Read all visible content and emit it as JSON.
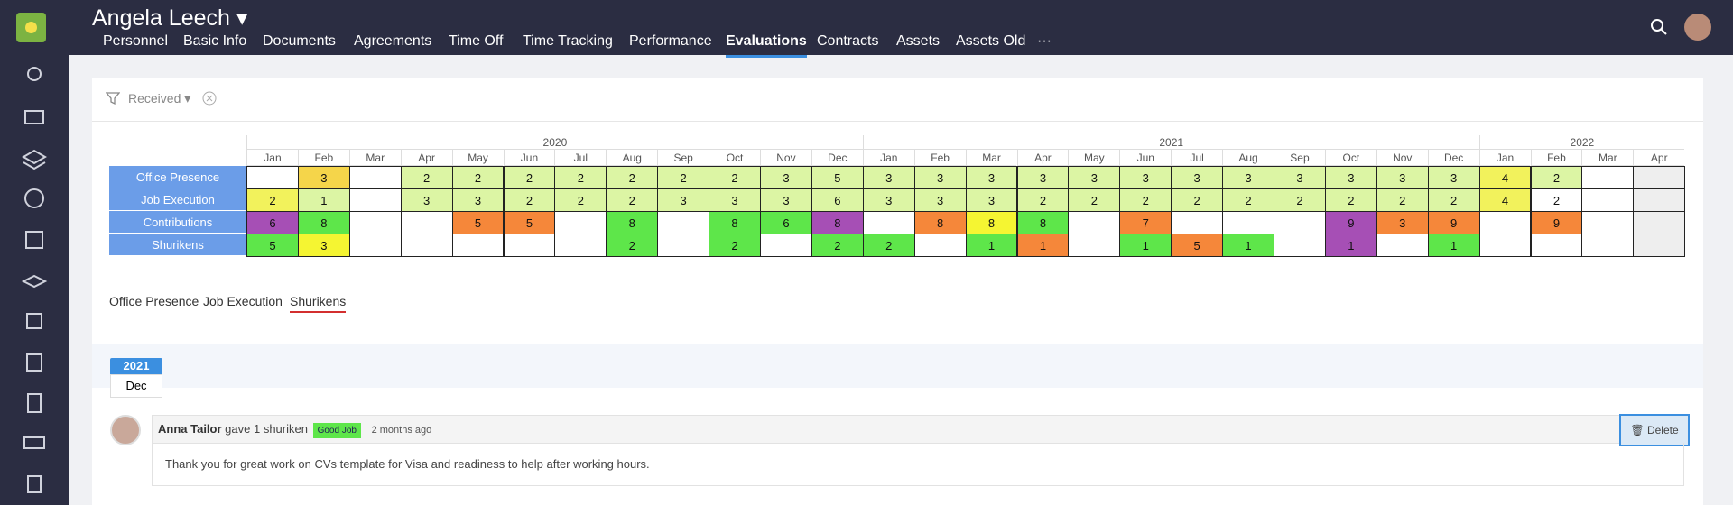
{
  "header": {
    "user_name": "Angela Leech",
    "tabs": [
      "Personnel",
      "Basic Info",
      "Documents",
      "Agreements",
      "Time Off",
      "Time Tracking",
      "Performance",
      "Evaluations",
      "Contracts",
      "Assets",
      "Assets Old",
      "···"
    ]
  },
  "filter": {
    "label": "Received"
  },
  "grid": {
    "years": [
      "2020",
      "2021",
      "2022"
    ],
    "months": [
      "Jan",
      "Feb",
      "Mar",
      "Apr",
      "May",
      "Jun",
      "Jul",
      "Aug",
      "Sep",
      "Oct",
      "Nov",
      "Dec",
      "Jan",
      "Feb",
      "Mar",
      "Apr",
      "May",
      "Jun",
      "Jul",
      "Aug",
      "Sep",
      "Oct",
      "Nov",
      "Dec",
      "Jan",
      "Feb",
      "Mar",
      "Apr"
    ],
    "rows": [
      {
        "label": "Office Presence",
        "values": [
          null,
          3,
          null,
          2,
          2,
          2,
          2,
          2,
          2,
          2,
          3,
          5,
          3,
          3,
          3,
          3,
          3,
          3,
          3,
          3,
          3,
          3,
          3,
          3,
          4,
          2,
          null,
          null
        ],
        "colors": [
          null,
          "#f5d54a",
          null,
          "#dcf5a4",
          "#dcf5a4",
          "#dcf5a4",
          "#dcf5a4",
          "#dcf5a4",
          "#dcf5a4",
          "#dcf5a4",
          "#dcf5a4",
          "#dcf5a4",
          "#dcf5a4",
          "#dcf5a4",
          "#dcf5a4",
          "#dcf5a4",
          "#dcf5a4",
          "#dcf5a4",
          "#dcf5a4",
          "#dcf5a4",
          "#dcf5a4",
          "#dcf5a4",
          "#dcf5a4",
          "#dcf5a4",
          "#f2f25c",
          "#dcf5a4",
          null,
          "#eeeeee"
        ]
      },
      {
        "label": "Job Execution",
        "values": [
          2,
          1,
          null,
          3,
          3,
          2,
          2,
          2,
          3,
          3,
          3,
          6,
          3,
          3,
          3,
          2,
          2,
          2,
          2,
          2,
          2,
          2,
          2,
          2,
          4,
          2,
          null,
          null
        ],
        "colors": [
          "#f2f25c",
          "#dcf5a4",
          null,
          "#dcf5a4",
          "#dcf5a4",
          "#dcf5a4",
          "#dcf5a4",
          "#dcf5a4",
          "#dcf5a4",
          "#dcf5a4",
          "#dcf5a4",
          "#dcf5a4",
          "#dcf5a4",
          "#dcf5a4",
          "#dcf5a4",
          "#dcf5a4",
          "#dcf5a4",
          "#dcf5a4",
          "#dcf5a4",
          "#dcf5a4",
          "#dcf5a4",
          "#dcf5a4",
          "#dcf5a4",
          "#dcf5a4",
          "#f2f25c",
          null,
          null,
          "#eeeeee"
        ]
      },
      {
        "label": "Contributions",
        "values": [
          6,
          8,
          null,
          null,
          5,
          5,
          null,
          8,
          null,
          8,
          6,
          8,
          null,
          8,
          8,
          8,
          null,
          7,
          null,
          null,
          null,
          9,
          3,
          9,
          null,
          9,
          null,
          null
        ],
        "colors": [
          "#a64fb5",
          "#5ee64a",
          null,
          null,
          "#f5873a",
          "#f5873a",
          null,
          "#5ee64a",
          null,
          "#5ee64a",
          "#5ee64a",
          "#a64fb5",
          null,
          "#f5873a",
          "#f5f532",
          "#5ee64a",
          null,
          "#f5873a",
          null,
          null,
          null,
          "#a64fb5",
          "#f5873a",
          "#f5873a",
          null,
          "#f5873a",
          null,
          "#eeeeee"
        ]
      },
      {
        "label": "Shurikens",
        "values": [
          5,
          3,
          null,
          null,
          null,
          null,
          null,
          2,
          null,
          2,
          null,
          2,
          2,
          null,
          1,
          1,
          null,
          1,
          5,
          1,
          null,
          1,
          null,
          1,
          null,
          null,
          null,
          null
        ],
        "colors": [
          "#5ee64a",
          "#f5f532",
          null,
          null,
          null,
          null,
          null,
          "#5ee64a",
          null,
          "#5ee64a",
          null,
          "#5ee64a",
          "#5ee64a",
          null,
          "#5ee64a",
          "#f5873a",
          null,
          "#5ee64a",
          "#f5873a",
          "#5ee64a",
          null,
          "#a64fb5",
          null,
          "#5ee64a",
          null,
          null,
          null,
          "#eeeeee"
        ]
      }
    ]
  },
  "section_tabs": [
    "Office Presence",
    "Job Execution",
    "Shurikens"
  ],
  "timeline": {
    "year": "2021",
    "month": "Dec"
  },
  "comment": {
    "author": "Anna Tailor",
    "action": "gave 1 shuriken",
    "tag": "Good Job",
    "time": "2 months ago",
    "text": "Thank you for great work on CVs template for Visa and readiness to help after working hours.",
    "delete": "Delete"
  }
}
